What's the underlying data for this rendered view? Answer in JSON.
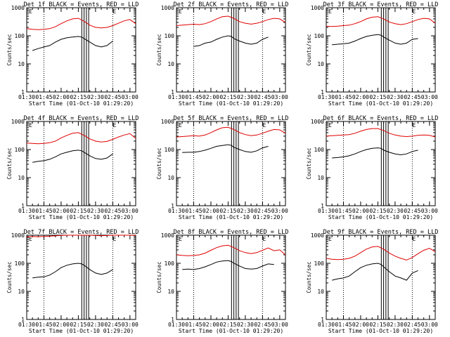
{
  "figure": {
    "x_tick_labels": [
      "01:30",
      "01:45",
      "02:00",
      "02:15",
      "02:30",
      "02:45",
      "03:00"
    ],
    "y_tick_labels": [
      "1",
      "10",
      "100",
      "1000"
    ],
    "corner_marks": [
      "E",
      "E"
    ],
    "colors": {
      "events": "#000000",
      "lld": "#e00000",
      "axes": "#000000",
      "background": "#ffffff"
    }
  },
  "chart_data": [
    {
      "type": "line",
      "title": "Det 1f BLACK = Events, RED = LLD",
      "xlabel": "Start Time (01-Oct-10 01:29:20)",
      "ylabel": "Counts/sec",
      "x_unit": "minutes after 01:30 UT",
      "xlim": [
        0,
        95
      ],
      "ylim": [
        1,
        1000
      ],
      "yscale": "log",
      "dotted_vertical_lines_x": [
        15,
        75
      ],
      "solid_vertical_lines_x": [
        48,
        50,
        52,
        54
      ],
      "series": [
        {
          "name": "Events",
          "color": "#000000",
          "x": [
            5,
            10,
            15,
            20,
            25,
            30,
            35,
            40,
            45,
            48,
            50,
            55,
            60,
            65,
            70,
            75
          ],
          "values": [
            30,
            35,
            40,
            45,
            60,
            75,
            85,
            90,
            95,
            90,
            80,
            60,
            45,
            40,
            45,
            65
          ]
        },
        {
          "name": "LLD",
          "color": "#e00000",
          "x": [
            0,
            5,
            10,
            15,
            20,
            25,
            30,
            35,
            40,
            45,
            50,
            55,
            60,
            65,
            70,
            75,
            80,
            85,
            90,
            95
          ],
          "values": [
            180,
            170,
            165,
            170,
            180,
            210,
            270,
            340,
            400,
            420,
            330,
            240,
            200,
            190,
            200,
            230,
            280,
            340,
            380,
            270
          ]
        }
      ]
    },
    {
      "type": "line",
      "title": "Det 2f BLACK = Events, RED = LLD",
      "xlabel": "Start Time (01-Oct-10 01:29:20)",
      "ylabel": "Counts/sec",
      "x_unit": "minutes after 01:30 UT",
      "xlim": [
        0,
        95
      ],
      "ylim": [
        1,
        1000
      ],
      "yscale": "log",
      "dotted_vertical_lines_x": [
        15,
        75
      ],
      "solid_vertical_lines_x": [
        48,
        50,
        52,
        54
      ],
      "series": [
        {
          "name": "Events",
          "color": "#000000",
          "x": [
            15,
            20,
            25,
            30,
            35,
            40,
            45,
            48,
            50,
            55,
            60,
            65,
            70,
            75,
            80
          ],
          "values": [
            42,
            45,
            55,
            60,
            75,
            90,
            100,
            95,
            80,
            65,
            55,
            50,
            55,
            75,
            90
          ]
        },
        {
          "name": "LLD",
          "color": "#e00000",
          "x": [
            0,
            5,
            10,
            15,
            20,
            25,
            30,
            35,
            40,
            45,
            50,
            55,
            60,
            65,
            70,
            75,
            80,
            85,
            90,
            95
          ],
          "values": [
            230,
            240,
            250,
            260,
            250,
            270,
            320,
            400,
            480,
            500,
            420,
            320,
            280,
            260,
            280,
            320,
            380,
            420,
            400,
            300
          ]
        }
      ]
    },
    {
      "type": "line",
      "title": "Det 3f BLACK = Events, RED = LLD",
      "xlabel": "Start Time (01-Oct-10 01:29:20)",
      "ylabel": "Counts/sec",
      "x_unit": "minutes after 01:30 UT",
      "xlim": [
        0,
        95
      ],
      "ylim": [
        1,
        1000
      ],
      "yscale": "log",
      "dotted_vertical_lines_x": [
        15,
        75
      ],
      "solid_vertical_lines_x": [
        48,
        50,
        52,
        54
      ],
      "series": [
        {
          "name": "Events",
          "color": "#000000",
          "x": [
            5,
            10,
            15,
            20,
            25,
            30,
            35,
            40,
            45,
            48,
            50,
            55,
            60,
            65,
            70,
            75,
            80
          ],
          "values": [
            48,
            50,
            52,
            55,
            65,
            80,
            95,
            105,
            110,
            105,
            90,
            70,
            55,
            50,
            55,
            75,
            80
          ]
        },
        {
          "name": "LLD",
          "color": "#e00000",
          "x": [
            0,
            5,
            10,
            15,
            20,
            25,
            30,
            35,
            40,
            45,
            50,
            55,
            60,
            65,
            70,
            75,
            80,
            85,
            90,
            95
          ],
          "values": [
            220,
            215,
            220,
            230,
            240,
            270,
            320,
            400,
            460,
            480,
            400,
            310,
            270,
            250,
            270,
            320,
            380,
            420,
            400,
            280
          ]
        }
      ]
    },
    {
      "type": "line",
      "title": "Det 4f BLACK = Events, RED = LLD",
      "xlabel": "Start Time (01-Oct-10 01:29:20)",
      "ylabel": "Counts/sec",
      "x_unit": "minutes after 01:30 UT",
      "xlim": [
        0,
        95
      ],
      "ylim": [
        1,
        1000
      ],
      "yscale": "log",
      "dotted_vertical_lines_x": [
        15,
        75
      ],
      "solid_vertical_lines_x": [
        48,
        50,
        52,
        54
      ],
      "series": [
        {
          "name": "Events",
          "color": "#000000",
          "x": [
            5,
            10,
            15,
            20,
            25,
            30,
            35,
            40,
            45,
            48,
            50,
            55,
            60,
            65,
            70,
            75
          ],
          "values": [
            35,
            38,
            40,
            45,
            55,
            70,
            80,
            90,
            95,
            90,
            80,
            60,
            48,
            45,
            50,
            70
          ]
        },
        {
          "name": "LLD",
          "color": "#e00000",
          "x": [
            0,
            5,
            10,
            15,
            20,
            25,
            30,
            35,
            40,
            45,
            50,
            55,
            60,
            65,
            70,
            75,
            80,
            85,
            90,
            95
          ],
          "values": [
            170,
            165,
            160,
            165,
            175,
            200,
            260,
            320,
            380,
            400,
            320,
            240,
            200,
            185,
            195,
            230,
            280,
            330,
            370,
            250
          ]
        }
      ]
    },
    {
      "type": "line",
      "title": "Det 5f BLACK = Events, RED = LLD",
      "xlabel": "Start Time (01-Oct-10 01:29:20)",
      "ylabel": "Counts/sec",
      "x_unit": "minutes after 01:30 UT",
      "xlim": [
        0,
        95
      ],
      "ylim": [
        1,
        1000
      ],
      "yscale": "log",
      "dotted_vertical_lines_x": [
        15,
        75
      ],
      "solid_vertical_lines_x": [
        48,
        50,
        52,
        54
      ],
      "series": [
        {
          "name": "Events",
          "color": "#000000",
          "x": [
            5,
            10,
            15,
            20,
            25,
            30,
            35,
            40,
            45,
            48,
            50,
            55,
            60,
            65,
            70,
            75,
            80
          ],
          "values": [
            78,
            80,
            80,
            85,
            95,
            110,
            130,
            140,
            150,
            140,
            120,
            100,
            85,
            80,
            90,
            115,
            130
          ]
        },
        {
          "name": "LLD",
          "color": "#e00000",
          "x": [
            0,
            5,
            10,
            15,
            20,
            25,
            30,
            35,
            40,
            45,
            50,
            55,
            60,
            65,
            70,
            75,
            80,
            85,
            90,
            95
          ],
          "values": [
            280,
            290,
            300,
            310,
            300,
            330,
            400,
            500,
            600,
            620,
            520,
            400,
            340,
            310,
            330,
            380,
            450,
            520,
            500,
            380
          ]
        }
      ]
    },
    {
      "type": "line",
      "title": "Det 6f BLACK = Events, RED = LLD",
      "xlabel": "Start Time (01-Oct-10 01:29:20)",
      "ylabel": "Counts/sec",
      "x_unit": "minutes after 01:30 UT",
      "xlim": [
        0,
        95
      ],
      "ylim": [
        1,
        1000
      ],
      "yscale": "log",
      "dotted_vertical_lines_x": [
        15,
        75
      ],
      "solid_vertical_lines_x": [
        48,
        50,
        52,
        54
      ],
      "series": [
        {
          "name": "Events",
          "color": "#000000",
          "x": [
            5,
            10,
            15,
            20,
            25,
            30,
            35,
            40,
            45,
            48,
            50,
            55,
            60,
            65,
            70,
            75,
            80
          ],
          "values": [
            50,
            52,
            55,
            60,
            70,
            85,
            100,
            110,
            115,
            110,
            95,
            80,
            70,
            65,
            70,
            85,
            95
          ]
        },
        {
          "name": "LLD",
          "color": "#e00000",
          "x": [
            0,
            5,
            10,
            15,
            20,
            25,
            30,
            35,
            40,
            45,
            50,
            55,
            60,
            65,
            70,
            75,
            80,
            85,
            90,
            95
          ],
          "values": [
            300,
            310,
            320,
            330,
            340,
            380,
            450,
            520,
            560,
            560,
            480,
            380,
            330,
            300,
            290,
            300,
            320,
            330,
            320,
            280
          ]
        }
      ]
    },
    {
      "type": "line",
      "title": "Det 7f BLACK = Events, RED = LLD",
      "xlabel": "Start Time (01-Oct-10 01:29:20)",
      "ylabel": "Counts/sec",
      "x_unit": "minutes after 01:30 UT",
      "xlim": [
        0,
        95
      ],
      "ylim": [
        1,
        1000
      ],
      "yscale": "log",
      "dotted_vertical_lines_x": [
        15,
        75
      ],
      "solid_vertical_lines_x": [
        48,
        50,
        52,
        54
      ],
      "series": [
        {
          "name": "Events",
          "color": "#000000",
          "x": [
            5,
            10,
            15,
            20,
            25,
            30,
            35,
            40,
            45,
            48,
            50,
            55,
            60,
            65,
            70,
            75
          ],
          "values": [
            30,
            32,
            33,
            38,
            50,
            70,
            85,
            95,
            100,
            95,
            85,
            60,
            45,
            40,
            45,
            60
          ]
        },
        {
          "name": "LLD",
          "color": "#e00000",
          "x": [
            0,
            5,
            10,
            15,
            20,
            25,
            30,
            35,
            40,
            45,
            50,
            55,
            60,
            65,
            70,
            75,
            80,
            85,
            90,
            95
          ],
          "values": [
            850,
            900,
            880,
            900,
            920,
            950,
            980,
            1000,
            1000,
            1000,
            1000,
            1000,
            980,
            960,
            980,
            1000,
            1000,
            1000,
            1000,
            980
          ]
        }
      ]
    },
    {
      "type": "line",
      "title": "Det 8f BLACK = Events, RED = LLD",
      "xlabel": "Start Time (01-Oct-10 01:29:20)",
      "ylabel": "Counts/sec",
      "x_unit": "minutes after 01:30 UT",
      "xlim": [
        0,
        95
      ],
      "ylim": [
        1,
        1000
      ],
      "yscale": "log",
      "dotted_vertical_lines_x": [
        15,
        75
      ],
      "solid_vertical_lines_x": [
        48,
        50,
        52,
        54
      ],
      "series": [
        {
          "name": "Events",
          "color": "#000000",
          "x": [
            5,
            10,
            15,
            20,
            25,
            30,
            35,
            40,
            45,
            48,
            50,
            55,
            60,
            65,
            70,
            75,
            80,
            85
          ],
          "values": [
            60,
            62,
            60,
            65,
            75,
            90,
            110,
            120,
            125,
            115,
            100,
            80,
            65,
            62,
            65,
            80,
            95,
            90
          ]
        },
        {
          "name": "LLD",
          "color": "#e00000",
          "x": [
            0,
            5,
            10,
            15,
            20,
            25,
            30,
            35,
            40,
            45,
            50,
            55,
            60,
            65,
            70,
            75,
            80,
            85,
            90,
            95
          ],
          "values": [
            200,
            190,
            185,
            190,
            200,
            230,
            290,
            360,
            420,
            440,
            360,
            280,
            240,
            220,
            240,
            290,
            350,
            280,
            300,
            200
          ]
        }
      ]
    },
    {
      "type": "line",
      "title": "Det 9f BLACK = Events, RED = LLD",
      "xlabel": "Start Time (01-Oct-10 01:29:20)",
      "ylabel": "Counts/sec",
      "x_unit": "minutes after 01:30 UT",
      "xlim": [
        0,
        95
      ],
      "ylim": [
        1,
        1000
      ],
      "yscale": "log",
      "dotted_vertical_lines_x": [
        15,
        75
      ],
      "solid_vertical_lines_x": [
        48,
        50,
        52,
        54
      ],
      "series": [
        {
          "name": "Events",
          "color": "#000000",
          "x": [
            5,
            10,
            15,
            20,
            25,
            30,
            35,
            40,
            45,
            48,
            50,
            55,
            60,
            65,
            70,
            75,
            80
          ],
          "values": [
            25,
            28,
            30,
            35,
            50,
            70,
            85,
            95,
            100,
            90,
            75,
            50,
            35,
            30,
            25,
            45,
            55
          ]
        },
        {
          "name": "LLD",
          "color": "#e00000",
          "x": [
            0,
            5,
            10,
            15,
            20,
            25,
            30,
            35,
            40,
            45,
            50,
            55,
            60,
            65,
            70,
            75,
            80,
            85,
            90,
            95
          ],
          "values": [
            150,
            140,
            135,
            140,
            150,
            180,
            240,
            320,
            380,
            400,
            320,
            230,
            180,
            150,
            130,
            160,
            220,
            290,
            340,
            260
          ]
        }
      ]
    }
  ]
}
